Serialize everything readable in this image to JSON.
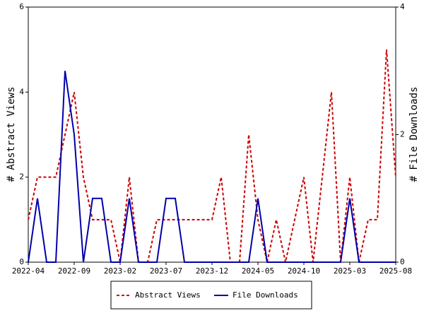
{
  "chart_data": {
    "type": "line",
    "categories": [
      "2022-04",
      null,
      null,
      null,
      null,
      "2022-09",
      null,
      null,
      null,
      null,
      "2023-02",
      null,
      null,
      null,
      null,
      "2023-07",
      null,
      null,
      null,
      null,
      "2023-12",
      null,
      null,
      null,
      null,
      "2024-05",
      null,
      null,
      null,
      null,
      "2024-10",
      null,
      null,
      null,
      null,
      "2025-03",
      null,
      null,
      null,
      null,
      "2025-08"
    ],
    "series": [
      {
        "name": "Abstract Views",
        "color": "#cc0000",
        "dashed": true,
        "values": [
          1,
          2,
          2,
          2,
          3,
          4,
          2,
          1,
          1,
          1,
          0,
          2,
          0,
          0,
          1,
          1,
          1,
          1,
          1,
          1,
          1,
          2,
          0,
          0,
          3,
          1,
          0,
          1,
          0,
          1,
          2,
          0,
          2,
          4,
          0,
          2,
          0,
          1,
          1,
          5,
          2
        ]
      },
      {
        "name": "File Downloads",
        "color": "#0000aa",
        "axis": "y2",
        "values": [
          0,
          1,
          0,
          0,
          3,
          2,
          0,
          1,
          1,
          0,
          0,
          1,
          0,
          0,
          0,
          1,
          1,
          0,
          0,
          0,
          0,
          0,
          0,
          0,
          0,
          1,
          0,
          0,
          0,
          0,
          0,
          0,
          0,
          0,
          0,
          1,
          0,
          0,
          0,
          0,
          0
        ]
      }
    ],
    "y_label": "# Abstract Views",
    "y2_label": "# File Downloads",
    "ylim": [
      0,
      6
    ],
    "yticks": [
      0,
      2,
      4,
      6
    ],
    "y2lim": [
      0,
      4
    ],
    "y2ticks": [
      0,
      2,
      4
    ],
    "legend": "bottom"
  }
}
